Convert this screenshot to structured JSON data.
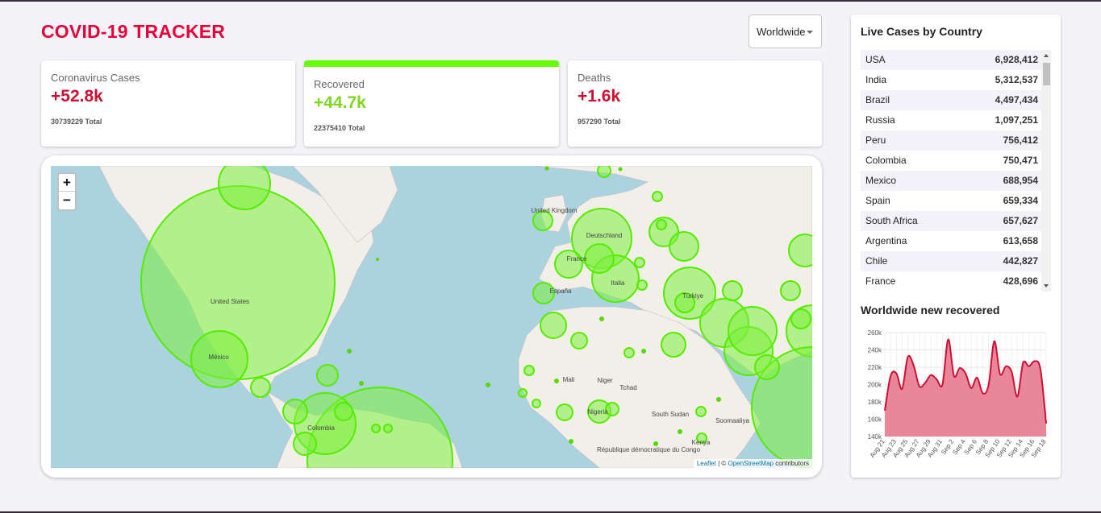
{
  "header": {
    "title": "COVID-19 TRACKER",
    "country_select": "Worldwide"
  },
  "stats": [
    {
      "label": "Coronavirus Cases",
      "value": "+52.8k",
      "total": "30739229 Total"
    },
    {
      "label": "Recovered",
      "value": "+44.7k",
      "total": "22375410 Total",
      "active": true
    },
    {
      "label": "Deaths",
      "value": "+1.6k",
      "total": "957290 Total"
    }
  ],
  "map": {
    "zoom_in": "+",
    "zoom_out": "−",
    "attribution_leaflet": "Leaflet",
    "attribution_sep": " | © ",
    "attribution_osm": "OpenStreetMap",
    "attribution_tail": " contributors",
    "labels": [
      "United States",
      "México",
      "Colombia",
      "United Kingdom",
      "Deutschland",
      "France",
      "Italia",
      "España",
      "Türkiye",
      "Mali",
      "Niger",
      "Nigeria",
      "South Sudan",
      "Kenya",
      "République démocratique du Congo",
      "Soomaaliya",
      "Tchad"
    ]
  },
  "sidebar": {
    "live_title": "Live Cases by Country",
    "chart_title": "Worldwide new recovered",
    "countries": [
      {
        "name": "USA",
        "cases": "6,928,412"
      },
      {
        "name": "India",
        "cases": "5,312,537"
      },
      {
        "name": "Brazil",
        "cases": "4,497,434"
      },
      {
        "name": "Russia",
        "cases": "1,097,251"
      },
      {
        "name": "Peru",
        "cases": "756,412"
      },
      {
        "name": "Colombia",
        "cases": "750,471"
      },
      {
        "name": "Mexico",
        "cases": "688,954"
      },
      {
        "name": "Spain",
        "cases": "659,334"
      },
      {
        "name": "South Africa",
        "cases": "657,627"
      },
      {
        "name": "Argentina",
        "cases": "613,658"
      },
      {
        "name": "Chile",
        "cases": "442,827"
      },
      {
        "name": "France",
        "cases": "428,696"
      }
    ]
  },
  "colors": {
    "accent": "#e3033a",
    "recovered": "#66ff00",
    "chart_fill": "#e8798f",
    "chart_line": "#cc1034"
  },
  "chart_data": {
    "type": "area",
    "x": [
      "Aug 21",
      "Aug 22",
      "Aug 23",
      "Aug 24",
      "Aug 25",
      "Aug 26",
      "Aug 27",
      "Aug 28",
      "Aug 29",
      "Aug 30",
      "Aug 31",
      "Sep 1",
      "Sep 2",
      "Sep 3",
      "Sep 4",
      "Sep 5",
      "Sep 6",
      "Sep 7",
      "Sep 8",
      "Sep 9",
      "Sep 10",
      "Sep 11",
      "Sep 12",
      "Sep 13",
      "Sep 14",
      "Sep 15",
      "Sep 16",
      "Sep 17",
      "Sep 18"
    ],
    "tick_labels": [
      "Aug 21",
      "Aug 23",
      "Aug 25",
      "Aug 27",
      "Aug 29",
      "Aug 31",
      "Sep 2",
      "Sep 4",
      "Sep 6",
      "Sep 8",
      "Sep 10",
      "Sep 12",
      "Sep 14",
      "Sep 16",
      "Sep 18"
    ],
    "values": [
      170000,
      210000,
      213000,
      195000,
      232000,
      222000,
      198000,
      202000,
      211000,
      206000,
      200000,
      252000,
      210000,
      219000,
      213000,
      196000,
      208000,
      190000,
      199000,
      250000,
      212000,
      221000,
      215000,
      186000,
      225000,
      221000,
      227000,
      218000,
      155000
    ],
    "ylim": [
      140000,
      260000
    ],
    "y_ticks": [
      "140k",
      "160k",
      "180k",
      "200k",
      "220k",
      "240k",
      "260k"
    ],
    "grid": true
  }
}
